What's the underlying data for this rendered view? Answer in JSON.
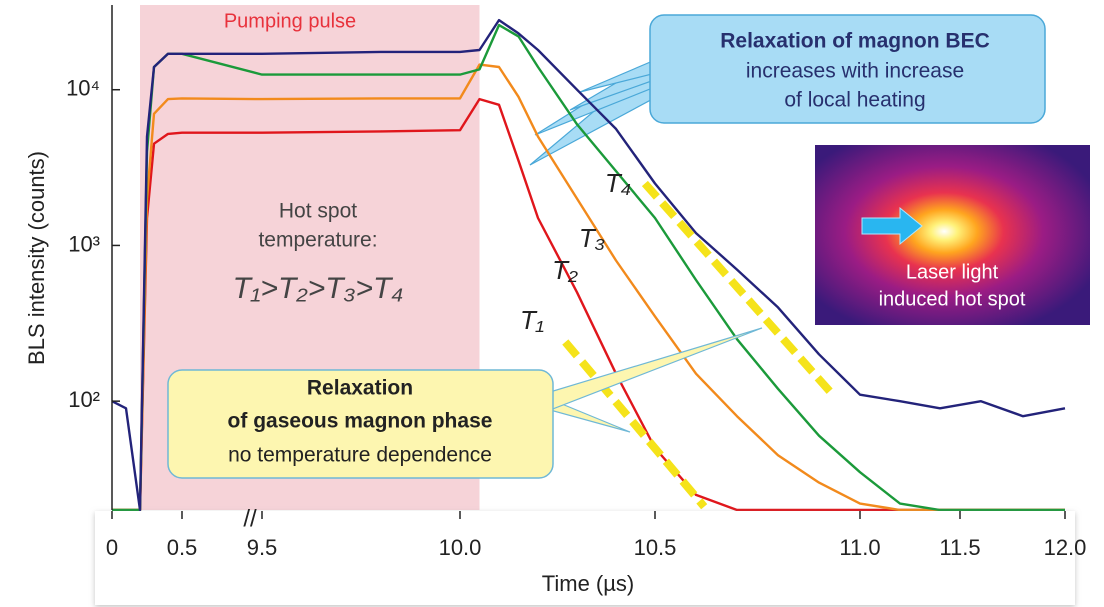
{
  "chart_data": {
    "type": "line",
    "x_axis_label": "Time (µs)",
    "y_axis_label": "BLS intensity (counts)",
    "log_y": true,
    "ylim": [
      20,
      35000
    ],
    "yticks": [
      {
        "value": 100,
        "label": "10²"
      },
      {
        "value": 1000,
        "label": "10³"
      },
      {
        "value": 10000,
        "label": "10⁴"
      }
    ],
    "xlim": [
      0,
      12
    ],
    "xticks": [
      0,
      0.5,
      9.5,
      {
        "value": 10,
        "label": "10.0"
      },
      10.5,
      {
        "value": 11,
        "label": "11.0"
      },
      11.5,
      {
        "value": 12,
        "label": "12.0"
      }
    ],
    "axis_break": "//",
    "shaded_region": {
      "label": "Pumping pulse",
      "x": [
        0.2,
        10.05
      ],
      "color": "#f6d3d8"
    },
    "x": [
      0,
      0.1,
      0.2,
      0.25,
      0.3,
      0.4,
      0.5,
      9.5,
      9.8,
      10.0,
      10.05,
      10.1,
      10.15,
      10.2,
      10.3,
      10.4,
      10.5,
      10.6,
      10.7,
      10.8,
      10.9,
      11.0,
      11.2,
      11.4,
      11.6,
      11.8,
      12.0
    ],
    "series": [
      {
        "name": "T₁",
        "color": "#e0161c",
        "values": [
          20,
          20,
          20,
          1500,
          4500,
          5200,
          5300,
          5300,
          5400,
          5500,
          8700,
          8000,
          3500,
          1500,
          500,
          150,
          50,
          25,
          20,
          20,
          20,
          20,
          20,
          20,
          20,
          20,
          20
        ]
      },
      {
        "name": "T₂",
        "color": "#f28a1c",
        "values": [
          20,
          20,
          20,
          2000,
          7000,
          8700,
          8800,
          8700,
          8800,
          8800,
          14500,
          14000,
          9000,
          5000,
          2000,
          800,
          350,
          150,
          80,
          45,
          30,
          22,
          20,
          20,
          20,
          20,
          20
        ]
      },
      {
        "name": "T₃",
        "color": "#1b9a3a",
        "values": [
          20,
          20,
          20,
          4000,
          14000,
          17000,
          17000,
          12500,
          12500,
          12500,
          13500,
          26000,
          22000,
          14000,
          6000,
          3000,
          1500,
          600,
          250,
          120,
          60,
          35,
          22,
          20,
          20,
          20,
          20
        ]
      },
      {
        "name": "T₄",
        "color": "#23237a",
        "values": [
          100,
          90,
          20,
          5000,
          14000,
          17000,
          17000,
          17000,
          17500,
          17500,
          18000,
          28000,
          23000,
          18000,
          10000,
          5600,
          2500,
          1200,
          700,
          400,
          200,
          110,
          100,
          90,
          100,
          80,
          90
        ]
      }
    ],
    "fit_lines": [
      {
        "color": "#f5e31a",
        "x": [
          10.27,
          10.62
        ],
        "y": [
          240,
          21
        ]
      },
      {
        "color": "#f5e31a",
        "x": [
          10.474,
          10.927
        ],
        "y": [
          2500,
          115
        ]
      }
    ],
    "annotations": {
      "hot_spot": [
        "Hot spot",
        "temperature:",
        "T₁>T₂>T₃>T₄"
      ],
      "bec_box": [
        "Relaxation of magnon BEC",
        "increases with increase",
        "of local heating"
      ],
      "gas_box": [
        "Relaxation",
        "of gaseous magnon phase",
        "no temperature dependence"
      ],
      "inset": [
        "Laser light",
        "induced hot spot"
      ]
    }
  }
}
